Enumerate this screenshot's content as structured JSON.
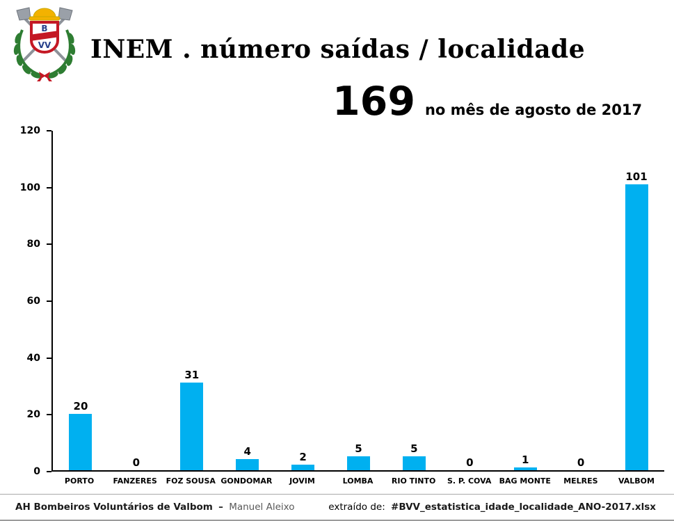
{
  "header": {
    "title": "INEM . número saídas / localidade",
    "total": "169",
    "total_caption": "no mês de agosto de 2017",
    "logo_top": "B",
    "logo_bottom": "VV"
  },
  "chart_data": {
    "type": "bar",
    "title": "INEM . número saídas / localidade",
    "subtitle": "169 no mês de agosto de 2017",
    "categories": [
      "PORTO",
      "FANZERES",
      "FOZ SOUSA",
      "GONDOMAR",
      "JOVIM",
      "LOMBA",
      "RIO TINTO",
      "S. P. COVA",
      "BAG MONTE",
      "MELRES",
      "VALBOM"
    ],
    "values": [
      20,
      0,
      31,
      4,
      2,
      5,
      5,
      0,
      1,
      0,
      101
    ],
    "total": 169,
    "xlabel": "",
    "ylabel": "",
    "ylim": [
      0,
      120
    ],
    "yticks": [
      0,
      20,
      40,
      60,
      80,
      100,
      120
    ],
    "bar_color": "#00B0F0",
    "grid": false,
    "value_labels": true,
    "legend": false
  },
  "footer": {
    "org": "AH Bombeiros Voluntários de Valbom",
    "separator": "–",
    "author": "Manuel Aleixo",
    "source_label": "extraído de:",
    "source_file": "#BVV_estatistica_idade_localidade_ANO-2017.xlsx"
  }
}
